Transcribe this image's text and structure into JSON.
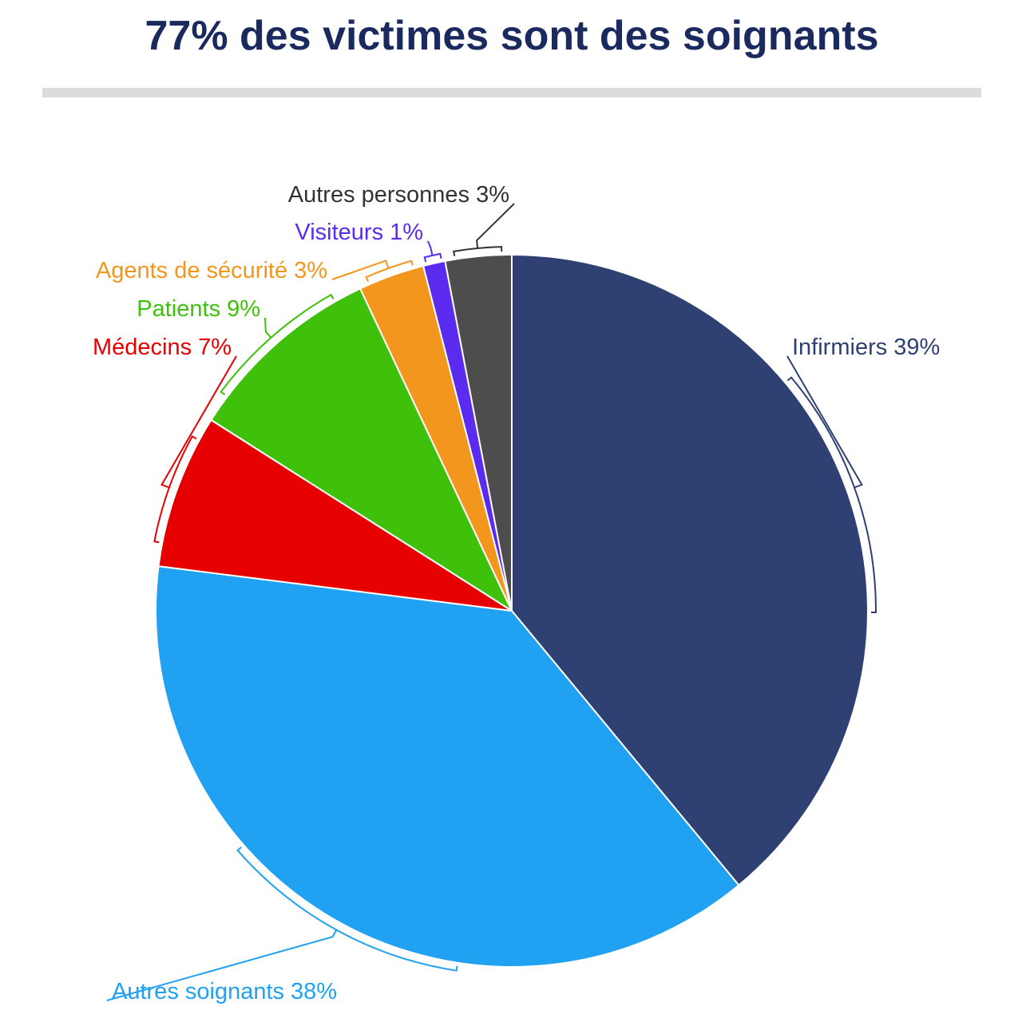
{
  "chart_data": {
    "type": "pie",
    "title": "77% des victimes sont des soignants",
    "categories": [
      "Infirmiers",
      "Autres soignants",
      "Médecins",
      "Patients",
      "Agents de sécurité",
      "Visiteurs",
      "Autres personnes"
    ],
    "values": [
      39,
      38,
      7,
      9,
      3,
      1,
      3
    ],
    "value_labels": [
      "39%",
      "38%",
      "7%",
      "9%",
      "3%",
      "1%",
      "3%"
    ],
    "colors": [
      "#2f4172",
      "#21a1f1",
      "#e60000",
      "#3fc00a",
      "#f2961e",
      "#5b2bf0",
      "#4d4d4d"
    ]
  }
}
